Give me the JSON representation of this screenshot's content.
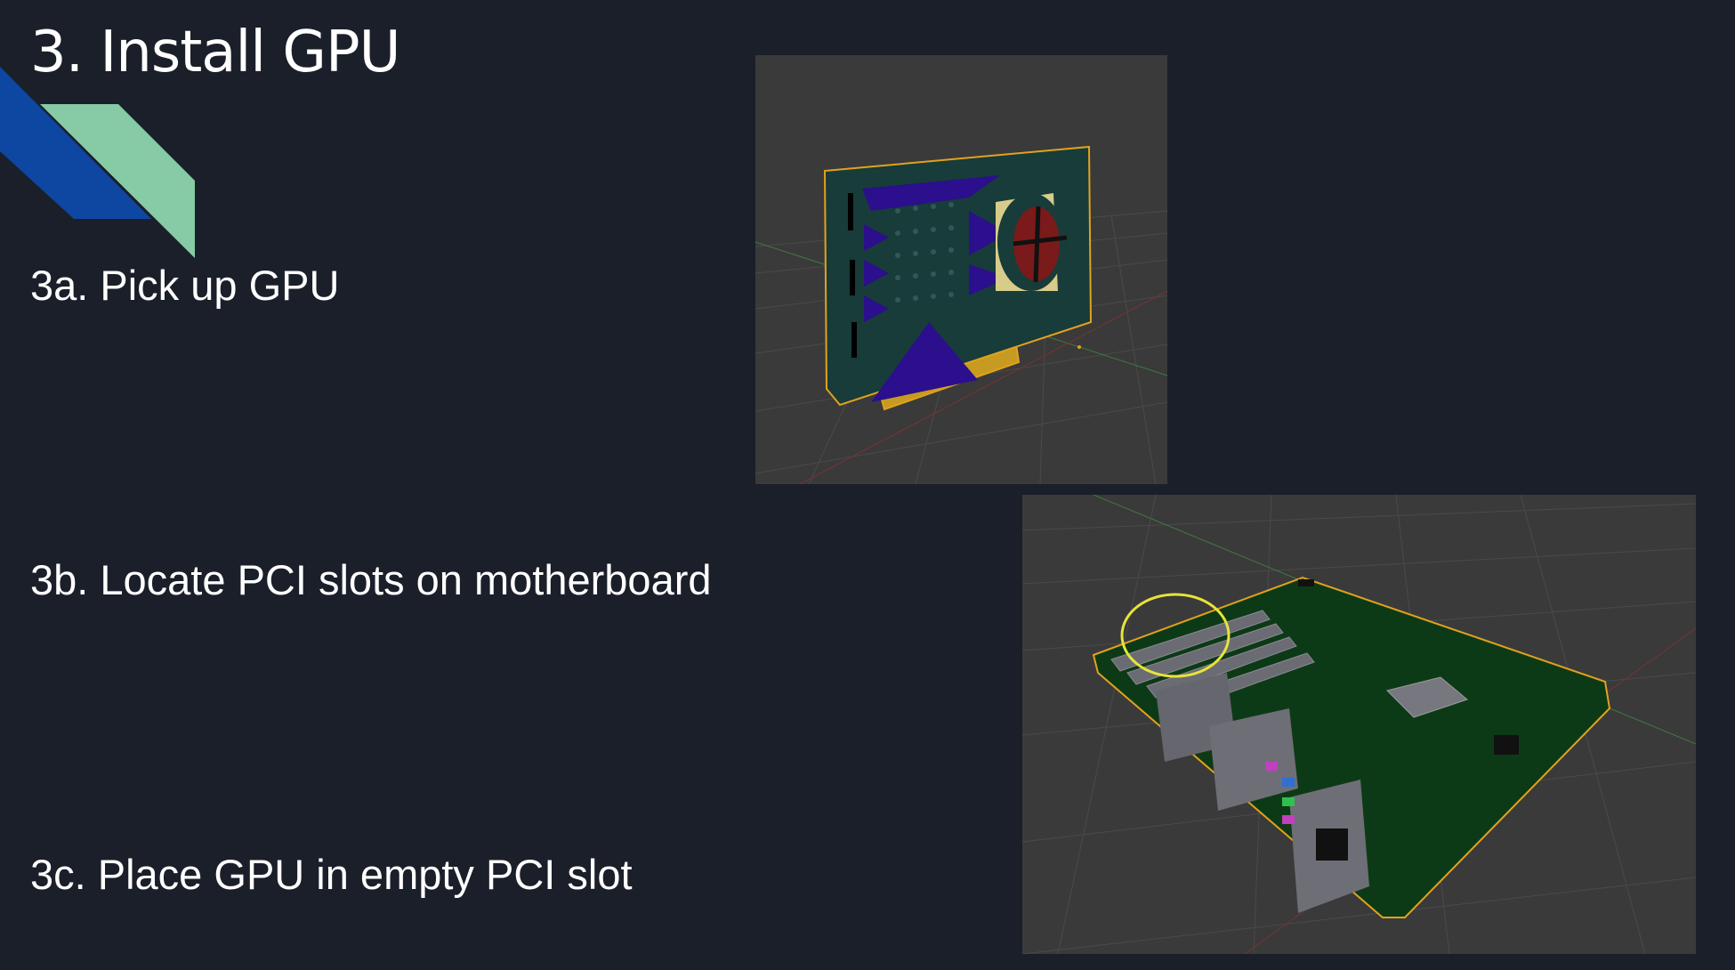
{
  "slide": {
    "title": "3. Install GPU",
    "steps": [
      "3a. Pick up GPU",
      "3b. Locate PCI slots on motherboard",
      "3c. Place GPU in empty PCI slot"
    ]
  },
  "colors": {
    "background": "#1b1f2a",
    "accent_blue": "#0d47a1",
    "accent_mint": "#86cba5",
    "viewport_bg": "#3a3a3a",
    "selection_outline": "#e2a21d",
    "highlight_circle": "#e7e33a",
    "gpu_body": "#173c3a",
    "gpu_triangles": "#2b0f8c",
    "motherboard_pcb": "#0d3a16"
  },
  "images": {
    "gpu_render": {
      "icon": "gpu-3d-render-icon"
    },
    "motherboard_render": {
      "icon": "motherboard-3d-render-icon"
    }
  }
}
